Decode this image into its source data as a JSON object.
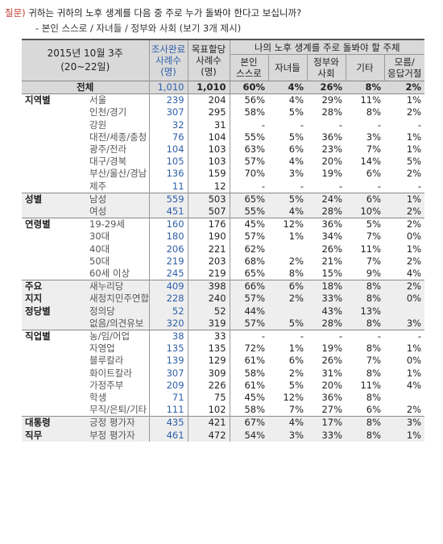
{
  "question": {
    "label": "질문)",
    "text": "귀하는 귀하의 노후 생계를 다음 중 주로 누가 돌봐야 한다고 보십니까?",
    "options": "- 본인 스스로 / 자녀들 / 정부와 사회 (보기 3개 제시)"
  },
  "header": {
    "date": "2015년 10월 3주",
    "age": "(20~22일)",
    "survey_top": "조사완료",
    "survey_mid": "사례수",
    "survey_bot": "(명)",
    "target_top": "목표할당",
    "target_mid": "사례수",
    "target_bot": "(명)",
    "group": "나의 노후 생계를 주로 돌봐야 할 주체",
    "cols": [
      "본인\n스스로",
      "자녀들",
      "정부와\n사회",
      "기타",
      "모름/\n응답거절"
    ]
  },
  "rows": [
    {
      "group": "",
      "sub": "전체",
      "n1": "1,010",
      "n2": "1,010",
      "v": [
        "60%",
        "4%",
        "26%",
        "8%",
        "2%"
      ],
      "total": true
    },
    {
      "group": "지역별",
      "sub": "서울",
      "n1": "239",
      "n2": "204",
      "v": [
        "56%",
        "4%",
        "29%",
        "11%",
        "1%"
      ],
      "gstart": true
    },
    {
      "group": "",
      "sub": "인천/경기",
      "n1": "307",
      "n2": "295",
      "v": [
        "58%",
        "5%",
        "28%",
        "8%",
        "2%"
      ]
    },
    {
      "group": "",
      "sub": "강원",
      "n1": "32",
      "n2": "31",
      "v": [
        "-",
        "-",
        "-",
        "-",
        "-"
      ]
    },
    {
      "group": "",
      "sub": "대전/세종/충청",
      "n1": "76",
      "n2": "104",
      "v": [
        "55%",
        "5%",
        "36%",
        "3%",
        "1%"
      ]
    },
    {
      "group": "",
      "sub": "광주/전라",
      "n1": "104",
      "n2": "103",
      "v": [
        "63%",
        "6%",
        "23%",
        "7%",
        "1%"
      ]
    },
    {
      "group": "",
      "sub": "대구/경북",
      "n1": "105",
      "n2": "103",
      "v": [
        "57%",
        "4%",
        "20%",
        "14%",
        "5%"
      ]
    },
    {
      "group": "",
      "sub": "부산/울산/경남",
      "n1": "136",
      "n2": "159",
      "v": [
        "70%",
        "3%",
        "19%",
        "6%",
        "2%"
      ]
    },
    {
      "group": "",
      "sub": "제주",
      "n1": "11",
      "n2": "12",
      "v": [
        "-",
        "-",
        "-",
        "-",
        "-"
      ]
    },
    {
      "group": "성별",
      "sub": "남성",
      "n1": "559",
      "n2": "503",
      "v": [
        "65%",
        "5%",
        "24%",
        "6%",
        "1%"
      ],
      "gstart": true,
      "shade": true
    },
    {
      "group": "",
      "sub": "여성",
      "n1": "451",
      "n2": "507",
      "v": [
        "55%",
        "4%",
        "28%",
        "10%",
        "2%"
      ],
      "shade": true
    },
    {
      "group": "연령별",
      "sub": "19-29세",
      "n1": "160",
      "n2": "176",
      "v": [
        "45%",
        "12%",
        "36%",
        "5%",
        "2%"
      ],
      "gstart": true
    },
    {
      "group": "",
      "sub": "30대",
      "n1": "180",
      "n2": "190",
      "v": [
        "57%",
        "1%",
        "34%",
        "7%",
        "0%"
      ]
    },
    {
      "group": "",
      "sub": "40대",
      "n1": "206",
      "n2": "221",
      "v": [
        "62%",
        "",
        "26%",
        "11%",
        "1%"
      ]
    },
    {
      "group": "",
      "sub": "50대",
      "n1": "219",
      "n2": "203",
      "v": [
        "68%",
        "2%",
        "21%",
        "7%",
        "2%"
      ]
    },
    {
      "group": "",
      "sub": "60세 이상",
      "n1": "245",
      "n2": "219",
      "v": [
        "65%",
        "8%",
        "15%",
        "9%",
        "4%"
      ]
    },
    {
      "group": "주요",
      "sub": "새누리당",
      "n1": "409",
      "n2": "398",
      "v": [
        "66%",
        "6%",
        "18%",
        "8%",
        "2%"
      ],
      "gstart": true,
      "shade": true
    },
    {
      "group": "지지",
      "sub": "새정치민주연합",
      "n1": "228",
      "n2": "240",
      "v": [
        "57%",
        "2%",
        "33%",
        "8%",
        "0%"
      ],
      "shade": true
    },
    {
      "group": "정당별",
      "sub": "정의당",
      "n1": "52",
      "n2": "52",
      "v": [
        "44%",
        "",
        "43%",
        "13%",
        ""
      ],
      "shade": true
    },
    {
      "group": "",
      "sub": "없음/의견유보",
      "n1": "320",
      "n2": "319",
      "v": [
        "57%",
        "5%",
        "28%",
        "8%",
        "3%"
      ],
      "shade": true
    },
    {
      "group": "직업별",
      "sub": "농/임/어업",
      "n1": "38",
      "n2": "33",
      "v": [
        "-",
        "-",
        "-",
        "-",
        "-"
      ],
      "gstart": true
    },
    {
      "group": "",
      "sub": "자영업",
      "n1": "135",
      "n2": "135",
      "v": [
        "72%",
        "1%",
        "19%",
        "8%",
        "1%"
      ]
    },
    {
      "group": "",
      "sub": "블루칼라",
      "n1": "139",
      "n2": "129",
      "v": [
        "61%",
        "6%",
        "26%",
        "7%",
        "0%"
      ]
    },
    {
      "group": "",
      "sub": "화이트칼라",
      "n1": "307",
      "n2": "309",
      "v": [
        "58%",
        "2%",
        "31%",
        "8%",
        "1%"
      ]
    },
    {
      "group": "",
      "sub": "가정주부",
      "n1": "209",
      "n2": "226",
      "v": [
        "61%",
        "5%",
        "20%",
        "11%",
        "4%"
      ]
    },
    {
      "group": "",
      "sub": "학생",
      "n1": "71",
      "n2": "75",
      "v": [
        "45%",
        "12%",
        "36%",
        "8%",
        ""
      ]
    },
    {
      "group": "",
      "sub": "무직/은퇴/기타",
      "n1": "111",
      "n2": "102",
      "v": [
        "58%",
        "7%",
        "27%",
        "6%",
        "2%"
      ]
    },
    {
      "group": "대통령",
      "sub": "긍정 평가자",
      "n1": "435",
      "n2": "421",
      "v": [
        "67%",
        "4%",
        "17%",
        "8%",
        "3%"
      ],
      "gstart": true,
      "shade": true
    },
    {
      "group": "직무",
      "sub": "부정 평가자",
      "n1": "461",
      "n2": "472",
      "v": [
        "54%",
        "3%",
        "33%",
        "8%",
        "1%"
      ],
      "shade": true
    }
  ]
}
